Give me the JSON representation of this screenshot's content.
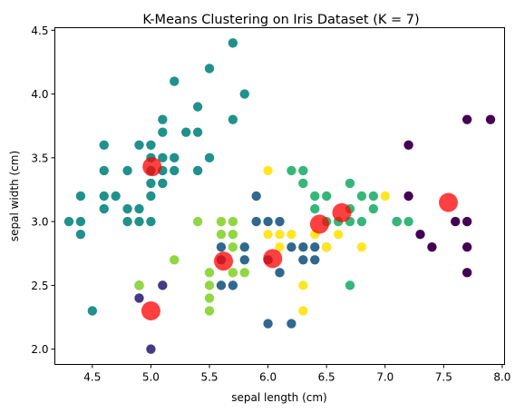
{
  "chart_data": {
    "type": "scatter",
    "title": "K-Means Clustering on Iris Dataset (K = 7)",
    "xlabel": "sepal length (cm)",
    "ylabel": "sepal width (cm)",
    "xlim": [
      4.18,
      8.02
    ],
    "ylim": [
      1.88,
      4.52
    ],
    "xticks": [
      "4.5",
      "5.0",
      "5.5",
      "6.0",
      "6.5",
      "7.0",
      "7.5",
      "8.0"
    ],
    "yticks": [
      "2.0",
      "2.5",
      "3.0",
      "3.5",
      "4.0",
      "4.5"
    ],
    "grid": false,
    "legend": false,
    "clusters": [
      {
        "color": "#440154",
        "points": [
          [
            7.1,
            3.0
          ],
          [
            7.2,
            3.6
          ],
          [
            7.2,
            3.2
          ],
          [
            7.3,
            2.9
          ],
          [
            7.4,
            2.8
          ],
          [
            7.6,
            3.0
          ],
          [
            7.7,
            3.8
          ],
          [
            7.7,
            3.0
          ],
          [
            7.7,
            2.8
          ],
          [
            7.7,
            2.6
          ],
          [
            7.9,
            3.8
          ]
        ]
      },
      {
        "color": "#443983",
        "points": [
          [
            4.9,
            2.5
          ],
          [
            4.9,
            2.4
          ],
          [
            5.0,
            2.0
          ],
          [
            5.1,
            2.5
          ]
        ]
      },
      {
        "color": "#31688e",
        "points": [
          [
            5.6,
            2.8
          ],
          [
            5.6,
            2.7
          ],
          [
            5.6,
            2.5
          ],
          [
            5.7,
            2.5
          ],
          [
            5.8,
            2.8
          ],
          [
            5.8,
            2.7
          ],
          [
            5.9,
            3.2
          ],
          [
            5.9,
            3.0
          ],
          [
            6.0,
            3.0
          ],
          [
            6.0,
            2.7
          ],
          [
            6.0,
            2.2
          ],
          [
            6.1,
            3.0
          ],
          [
            6.1,
            2.6
          ],
          [
            6.2,
            2.8
          ],
          [
            6.2,
            2.2
          ],
          [
            6.3,
            2.8
          ],
          [
            6.3,
            2.7
          ],
          [
            6.4,
            2.8
          ],
          [
            6.4,
            2.7
          ],
          [
            6.5,
            2.8
          ]
        ]
      },
      {
        "color": "#21918c",
        "points": [
          [
            4.3,
            3.0
          ],
          [
            4.4,
            3.2
          ],
          [
            4.4,
            3.0
          ],
          [
            4.4,
            2.9
          ],
          [
            4.5,
            2.3
          ],
          [
            4.6,
            3.6
          ],
          [
            4.6,
            3.4
          ],
          [
            4.6,
            3.2
          ],
          [
            4.6,
            3.1
          ],
          [
            4.7,
            3.2
          ],
          [
            4.8,
            3.4
          ],
          [
            4.8,
            3.1
          ],
          [
            4.8,
            3.0
          ],
          [
            4.9,
            3.6
          ],
          [
            4.9,
            3.1
          ],
          [
            4.9,
            3.0
          ],
          [
            5.0,
            3.6
          ],
          [
            5.0,
            3.5
          ],
          [
            5.0,
            3.4
          ],
          [
            5.0,
            3.3
          ],
          [
            5.0,
            3.2
          ],
          [
            5.0,
            3.0
          ],
          [
            5.1,
            3.8
          ],
          [
            5.1,
            3.7
          ],
          [
            5.1,
            3.5
          ],
          [
            5.1,
            3.4
          ],
          [
            5.1,
            3.3
          ],
          [
            5.2,
            4.1
          ],
          [
            5.2,
            3.5
          ],
          [
            5.2,
            3.4
          ],
          [
            5.3,
            3.7
          ],
          [
            5.4,
            3.9
          ],
          [
            5.4,
            3.7
          ],
          [
            5.4,
            3.4
          ],
          [
            5.5,
            4.2
          ],
          [
            5.5,
            3.5
          ],
          [
            5.7,
            4.4
          ],
          [
            5.7,
            3.8
          ],
          [
            5.8,
            4.0
          ]
        ]
      },
      {
        "color": "#35b779",
        "points": [
          [
            6.2,
            3.4
          ],
          [
            6.3,
            3.4
          ],
          [
            6.3,
            3.3
          ],
          [
            6.4,
            3.2
          ],
          [
            6.4,
            3.1
          ],
          [
            6.5,
            3.2
          ],
          [
            6.5,
            3.0
          ],
          [
            6.6,
            3.0
          ],
          [
            6.7,
            3.3
          ],
          [
            6.7,
            3.1
          ],
          [
            6.7,
            3.0
          ],
          [
            6.7,
            2.5
          ],
          [
            6.8,
            3.2
          ],
          [
            6.8,
            3.0
          ],
          [
            6.9,
            3.2
          ],
          [
            6.9,
            3.1
          ],
          [
            7.1,
            3.0
          ],
          [
            7.2,
            3.0
          ]
        ]
      },
      {
        "color": "#90d743",
        "points": [
          [
            4.9,
            2.5
          ],
          [
            5.2,
            2.7
          ],
          [
            5.4,
            3.0
          ],
          [
            5.5,
            2.6
          ],
          [
            5.5,
            2.5
          ],
          [
            5.5,
            2.4
          ],
          [
            5.5,
            2.3
          ],
          [
            5.6,
            3.0
          ],
          [
            5.6,
            2.9
          ],
          [
            5.7,
            3.0
          ],
          [
            5.7,
            2.9
          ],
          [
            5.7,
            2.8
          ],
          [
            5.7,
            2.6
          ],
          [
            5.8,
            2.6
          ]
        ]
      },
      {
        "color": "#fde725",
        "points": [
          [
            6.0,
            3.4
          ],
          [
            6.0,
            2.9
          ],
          [
            6.1,
            2.9
          ],
          [
            6.1,
            2.8
          ],
          [
            6.2,
            2.9
          ],
          [
            6.3,
            2.5
          ],
          [
            6.3,
            2.3
          ],
          [
            6.4,
            2.9
          ],
          [
            6.5,
            2.8
          ],
          [
            6.6,
            2.9
          ],
          [
            6.8,
            2.8
          ],
          [
            7.0,
            3.2
          ]
        ]
      }
    ],
    "centroids": {
      "color": "#ff0000",
      "points": [
        [
          5.01,
          3.43
        ],
        [
          5.0,
          2.3
        ],
        [
          5.62,
          2.69
        ],
        [
          6.04,
          2.71
        ],
        [
          6.44,
          2.98
        ],
        [
          6.63,
          3.07
        ],
        [
          7.54,
          3.15
        ]
      ]
    }
  }
}
